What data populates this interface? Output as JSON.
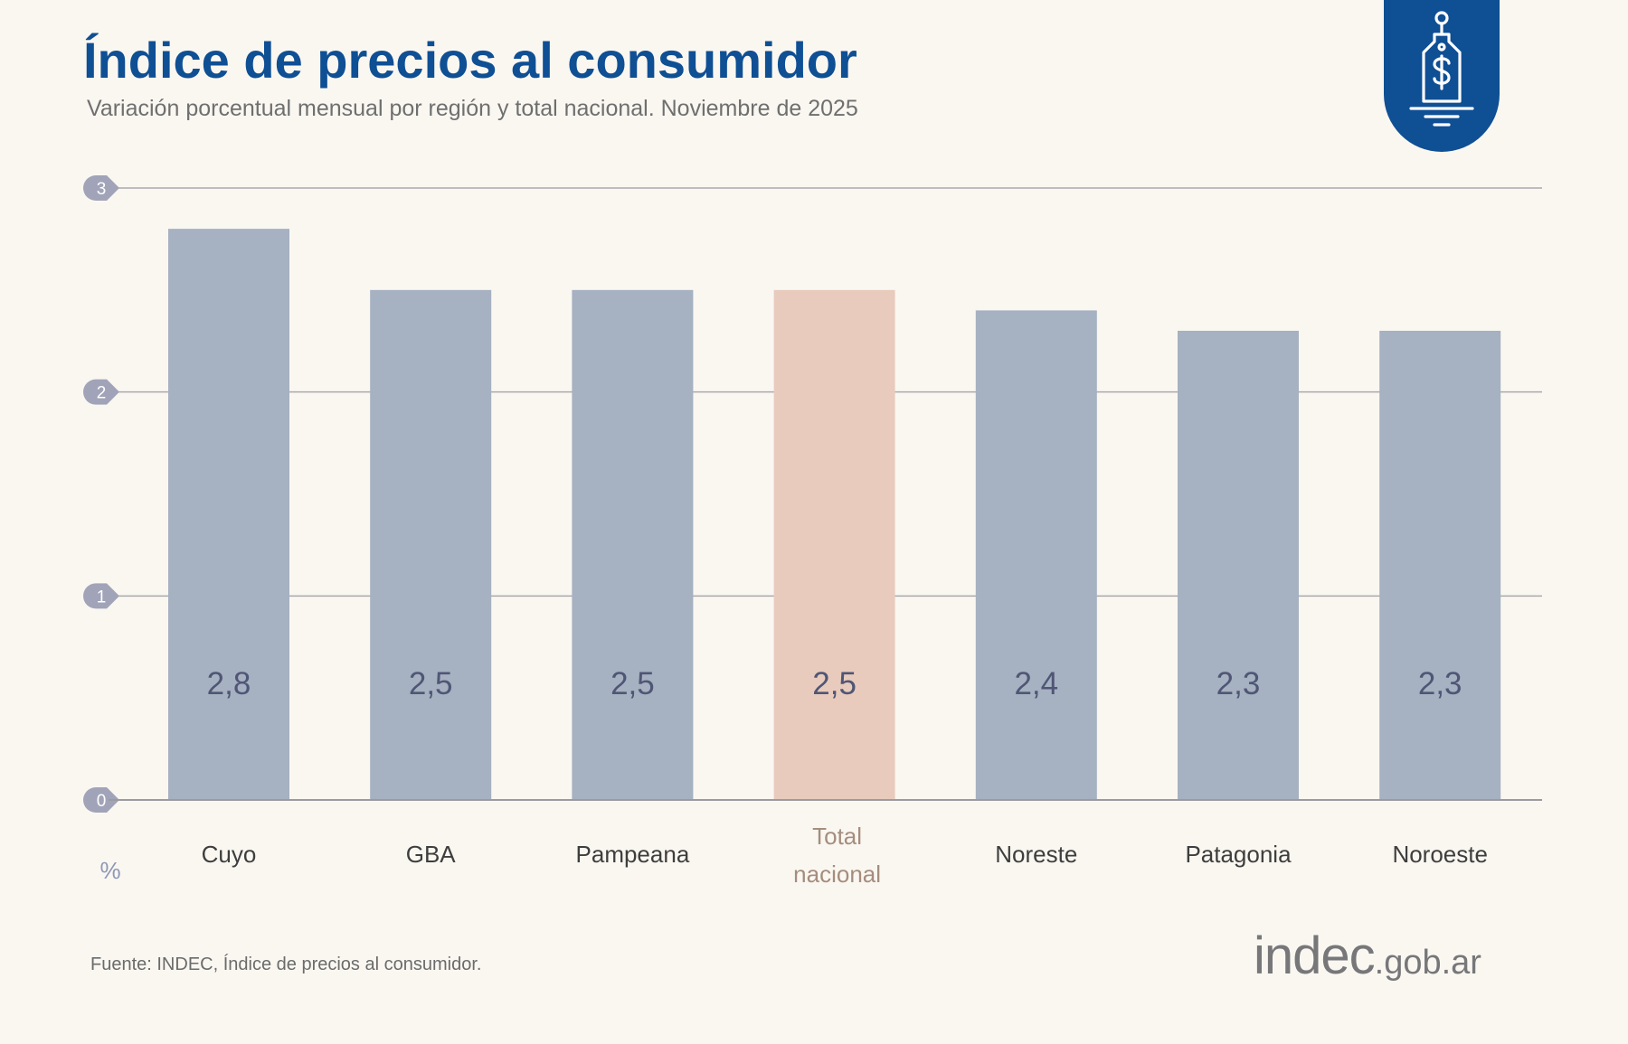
{
  "header": {
    "title": "Índice de precios al consumidor",
    "subtitle": "Variación porcentual mensual por región y total nacional. Noviembre de 2025"
  },
  "badge": {
    "icon": "price-tag-dollar-icon",
    "color": "#0f4f94"
  },
  "footer": {
    "source": "Fuente: INDEC, Índice de precios al consumidor.",
    "logo_main": "indec",
    "logo_suffix": ".gob.ar"
  },
  "chart_data": {
    "type": "bar",
    "categories": [
      "Cuyo",
      "GBA",
      "Pampeana",
      "Total nacional",
      "Noreste",
      "Patagonia",
      "Noroeste"
    ],
    "values": [
      2.8,
      2.5,
      2.5,
      2.5,
      2.4,
      2.3,
      2.3
    ],
    "value_labels": [
      "2,8",
      "2,5",
      "2,5",
      "2,5",
      "2,4",
      "2,3",
      "2,3"
    ],
    "highlight_index": 3,
    "ylim": [
      0,
      3
    ],
    "yticks": [
      0,
      1,
      2,
      3
    ],
    "yunit": "%",
    "grid": true,
    "colors": {
      "bar": "#a6b1c1",
      "highlight": "#e8cbbd",
      "value_text": "#4f5675",
      "category_text": "#3e3e3e",
      "highlight_category_text": "#a58d7e",
      "grid": "#a9a9ad",
      "tick_badge": "#a1a4b8"
    }
  }
}
